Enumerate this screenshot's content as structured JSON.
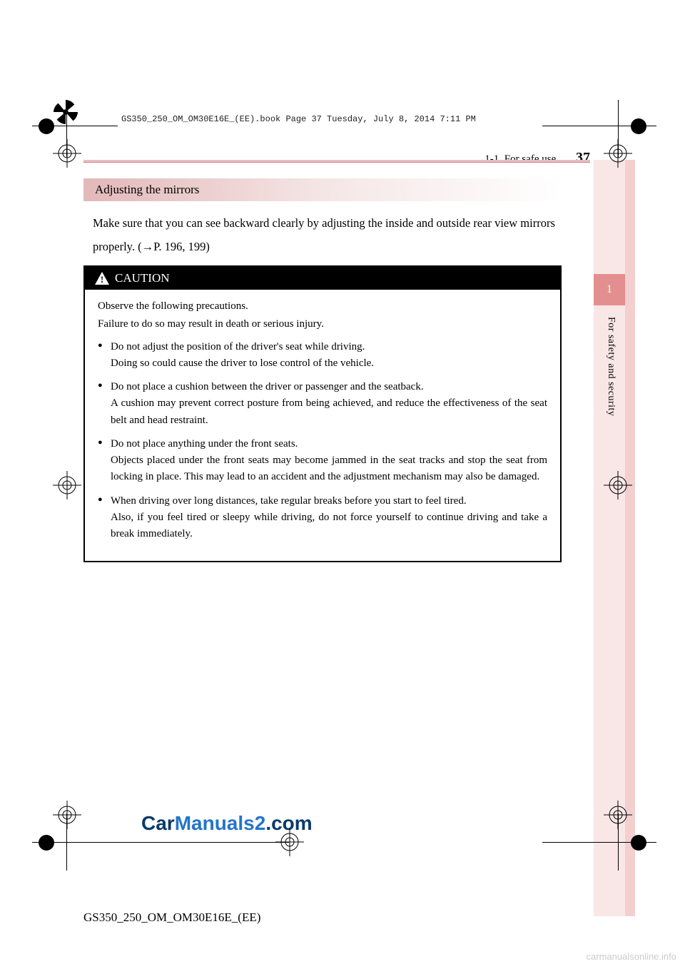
{
  "print_meta": "GS350_250_OM_OM30E16E_(EE).book  Page 37  Tuesday, July 8, 2014  7:11 PM",
  "header": {
    "section": "1-1. For safe use",
    "page_number": "37"
  },
  "right_tab": {
    "number": "1",
    "label": "For safety and security"
  },
  "section_title": "Adjusting the mirrors",
  "body_para": "Make sure that you can see backward clearly by adjusting the inside and outside rear view mirrors properly. (→P. 196, 199)",
  "caution": {
    "heading": "CAUTION",
    "intro1": "Observe the following precautions.",
    "intro2": "Failure to do so may result in death or serious injury.",
    "items": [
      "Do not adjust the position of the driver's seat while driving.\nDoing so could cause the driver to lose control of the vehicle.",
      "Do not place a cushion between the driver or passenger and the seatback.\nA cushion may prevent correct posture from being achieved, and reduce the effectiveness of the seat belt and head restraint.",
      "Do not place anything under the front seats.\nObjects placed under the front seats may become jammed in the seat tracks and stop the seat from locking in place. This may lead to an accident and the adjustment mechanism may also be damaged.",
      "When driving over long distances, take regular breaks before you start to feel tired.\nAlso, if you feel tired or sleepy while driving, do not force yourself to continue driving and take a break immediately."
    ]
  },
  "footer_code": "GS350_250_OM_OM30E16E_(EE)",
  "watermark1": "Car",
  "watermark2": "Manuals2",
  "watermark3": ".com",
  "footer_site": "carmanualsonline.info",
  "colors": {
    "band_start": "#e3b9ba",
    "tab_bg": "#e48f8f",
    "tab_light": "#f9e7e7",
    "tab_dark": "#f3cfcf",
    "header_rule": "#e4bfc2",
    "watermark_blue": "#2574c9",
    "footer_gray": "#cccccc"
  }
}
